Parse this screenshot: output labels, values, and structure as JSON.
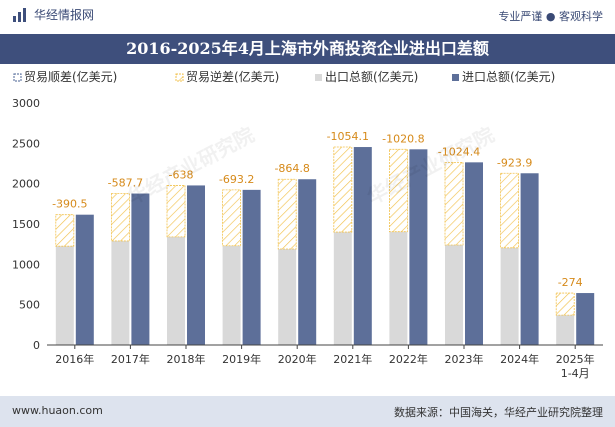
{
  "header": {
    "brand": "华经情报网",
    "tagline": "专业严谨 ● 客观科学"
  },
  "title": "2016-2025年4月上海市外商投资企业进出口差额",
  "watermark": "华经产业研究院",
  "footer": {
    "url": "www.huaon.com",
    "source": "数据来源：中国海关，华经产业研究院整理"
  },
  "chart_data": {
    "type": "bar",
    "categories": [
      "2016年",
      "2017年",
      "2018年",
      "2019年",
      "2020年",
      "2021年",
      "2022年",
      "2023年",
      "2024年",
      "2025年\n1-4月"
    ],
    "series": [
      {
        "name": "贸易顺差(亿美元)",
        "values": [
          0,
          0,
          0,
          0,
          0,
          0,
          0,
          0,
          0,
          0
        ]
      },
      {
        "name": "贸易逆差(亿美元)",
        "values": [
          -390.5,
          -587.7,
          -638,
          -693.2,
          -864.8,
          -1054.1,
          -1020.8,
          -1024.4,
          -923.9,
          -274
        ]
      },
      {
        "name": "出口总额(亿美元)",
        "values": [
          1225,
          1290,
          1340,
          1230,
          1190,
          1400,
          1405,
          1240,
          1205,
          370
        ]
      },
      {
        "name": "进口总额(亿美元)",
        "values": [
          1615.5,
          1877.7,
          1978,
          1923.2,
          2054.8,
          2454.1,
          2425.8,
          2264.4,
          2128.9,
          644
        ]
      }
    ],
    "data_labels": [
      "-390.5",
      "-587.7",
      "-638",
      "-693.2",
      "-864.8",
      "-1054.1",
      "-1020.8",
      "-1024.4",
      "-923.9",
      "-274"
    ],
    "ylim": [
      0,
      3000
    ],
    "yticks": [
      0,
      500,
      1000,
      1500,
      2000,
      2500,
      3000
    ],
    "grid": false,
    "legend": "top-left",
    "colors": {
      "surplus": "#6b7fa8",
      "deficit": "#f2c24d",
      "export": "#d9d9d9",
      "import": "#5d6f99"
    }
  }
}
